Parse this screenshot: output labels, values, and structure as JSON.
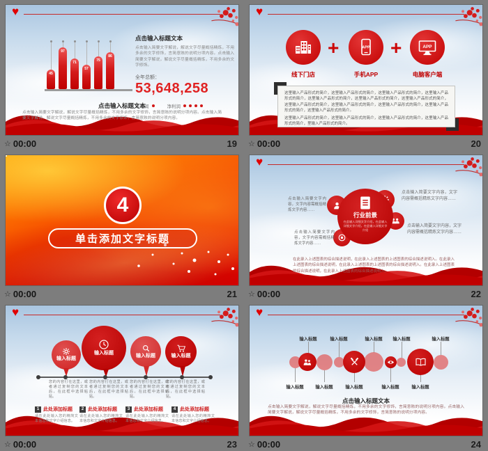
{
  "app": {
    "background": "#7d7d7d",
    "accent_red": "#c00000",
    "timer_icon": "transition-star-icon",
    "timer_icon_glyph": "☆"
  },
  "chart_data": {
    "type": "bar",
    "categories": [
      "1",
      "2",
      "3",
      "4",
      "5",
      "6"
    ],
    "values": [
      45,
      97,
      71,
      57,
      75,
      86
    ],
    "title": "",
    "xlabel": "",
    "ylabel": "",
    "ylim": [
      0,
      100
    ],
    "legend": [
      "毛利润",
      "净利润"
    ],
    "legend_position": "below-total",
    "annotation": {
      "label": "全年总额：",
      "value": "53,648,258"
    }
  },
  "slides": [
    {
      "number": "19",
      "timer": "00:00",
      "panel": {
        "title": "点击输入标题文本",
        "body": "点击输入简要文字解说，解说文字尽量概括精炼，不用多余的文字修饰，言简意赅的说明分项内容。点击输入简要文字解说，解说文字尽量概括精炼，不用多余的文字修饰。",
        "total_label": "全年总额：",
        "total_value": "53,648,258",
        "legend1": "毛利润",
        "legend2": "净利润"
      },
      "bottom_title": "点击输入标题文本",
      "bottom_body": "点击输入简要文字解说，解说文字尽量概括精炼，不用多余的文字修饰，言简意赅的说明分项内容。点击输入简要文字解说，解说文字尽量概括精炼，不用多余的文字修饰，言简意赅的说明分项内容。"
    },
    {
      "number": "20",
      "timer": "00:00",
      "plus": "+",
      "channels": [
        {
          "icon": "store-building-icon",
          "label": "线下门店"
        },
        {
          "icon": "mobile-app-icon",
          "label": "手机APP",
          "app_text": "APP"
        },
        {
          "icon": "desktop-app-icon",
          "label": "电脑客户端",
          "app_text": "APP"
        }
      ],
      "box": {
        "para1": "这里输入产品形式的简介，这里输入产品形式的简介，这里输入产品形式的简介，这里输入产品形式的简介，这里输入产品形式的简介，这里输入产品形式的简介，这里输入产品形式的简介，这里输入产品形式的简介，这里输入产品形式的简介，这里输入产品形式的简介，这里输入产品形式的简介，这里输入产品形式的简介。",
        "para2": "这里输入产品形式的简介，这里输入产品形式的简介，这里输入产品形式的简介，这里输入产品形式的简介，里输入产品形式的简介。"
      }
    },
    {
      "number": "21",
      "timer": "00:00",
      "big_number": "4",
      "title": "单击添加文字标题"
    },
    {
      "number": "22",
      "timer": "00:00",
      "center": {
        "icon": "document-icon",
        "title": "行业前景",
        "subtitle": "在此输入详细文字介绍，在此输入详细文字介绍，在此输入详细文字介绍"
      },
      "satellites": [
        {
          "icon": "person-icon"
        },
        {
          "icon": "gear-icon"
        },
        {
          "icon": "medal-icon"
        },
        {
          "icon": "group-icon"
        }
      ],
      "notes": [
        "点击输入简要文字内容，文字内容需概括精炼文字内容……",
        "点击输入简要文字内容，文字内容需概括精炼文字内容……",
        "点击输入简要文字内容，文字内容需概括精炼文字内容……",
        "点击输入简要文字内容，文字内容需概括精炼文字内容……"
      ],
      "summary": "在此录入上述图表的综合描述说明，在此录入上述图表的上述图表的综合描述说明入。在此录入上述图表的综合描述说明，在此录入上述图表的上述图表的综合描述说明入。在此录入上述图表的综合描述说明，在此录入上述图表的综合描述说明入。"
    },
    {
      "number": "23",
      "timer": "00:00",
      "balloons": [
        {
          "icon": "gear-icon",
          "label": "输入标题"
        },
        {
          "icon": "clock-icon",
          "label": "输入标题"
        },
        {
          "icon": "search-icon",
          "label": "输入标题"
        },
        {
          "icon": "cart-icon",
          "label": "输入标题"
        }
      ],
      "desc": "您的内容打在这里，或者通过复制您的文本后，在此框中选择粘贴。",
      "steps": [
        {
          "num": "1",
          "title": "此处添加标题",
          "body": "请在此处输入您的精简文本信息和文字介绍信息。"
        },
        {
          "num": "2",
          "title": "此处添加标题",
          "body": "请在此处输入您的精简文本信息和文字介绍信息。"
        },
        {
          "num": "3",
          "title": "此处添加标题",
          "body": "请在此处输入您的精简文本信息和文字介绍信息。"
        },
        {
          "num": "4",
          "title": "此处添加标题",
          "body": "请在此处输入您的精简文本信息和文字介绍信息。"
        }
      ]
    },
    {
      "number": "24",
      "timer": "00:00",
      "bubble_icons": [
        "two-people-icon",
        "tools-icon",
        "eye-icon",
        "book-icon"
      ],
      "top_labels": [
        "输入标题",
        "输入标题",
        "输入标题",
        "输入标题",
        "输入标题"
      ],
      "bottom_labels": [
        "输入标题",
        "输入标题",
        "输入标题",
        "输入标题",
        "输入标题"
      ],
      "title": "点击输入标题文本",
      "body": "点击输入简要文字解说，解说文字尽量概括精炼，不用多余的文字修饰，言简意赅的说明分项内容。点击输入简要文字解说，解说文字尽量概括精炼，不用多余的文字修饰，言简意赅的说明分项内容。"
    }
  ]
}
